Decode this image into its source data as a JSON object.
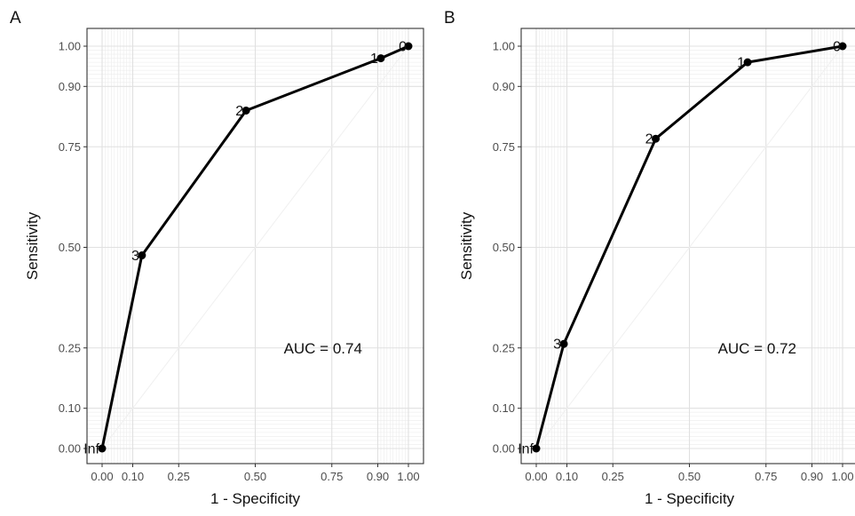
{
  "chart_data": [
    {
      "type": "line",
      "panel_label": "A",
      "xlabel": "1 - Specificity",
      "ylabel": "Sensitivity",
      "xlim": [
        0,
        1
      ],
      "ylim": [
        0,
        1
      ],
      "grid": true,
      "x_ticks": [
        0,
        0.1,
        0.25,
        0.5,
        0.75,
        0.9,
        1
      ],
      "x_tick_labels": [
        "0.00",
        "0.10",
        "0.25",
        "0.50",
        "0.75",
        "0.90",
        "1.00"
      ],
      "y_ticks": [
        0,
        0.1,
        0.25,
        0.5,
        0.75,
        0.9,
        1
      ],
      "y_tick_labels": [
        "0.00",
        "0.10",
        "0.25",
        "0.50",
        "0.75",
        "0.90",
        "1.00"
      ],
      "series": [
        {
          "points": [
            {
              "x": 0.0,
              "y": 0.0,
              "label": "Inf"
            },
            {
              "x": 0.13,
              "y": 0.48,
              "label": "3"
            },
            {
              "x": 0.47,
              "y": 0.84,
              "label": "2"
            },
            {
              "x": 0.91,
              "y": 0.97,
              "label": "1"
            },
            {
              "x": 1.0,
              "y": 1.0,
              "label": "0"
            }
          ]
        }
      ],
      "annotation": "AUC = 0.74"
    },
    {
      "type": "line",
      "panel_label": "B",
      "xlabel": "1 - Specificity",
      "ylabel": "Sensitivity",
      "xlim": [
        0,
        1
      ],
      "ylim": [
        0,
        1
      ],
      "grid": true,
      "x_ticks": [
        0,
        0.1,
        0.25,
        0.5,
        0.75,
        0.9,
        1
      ],
      "x_tick_labels": [
        "0.00",
        "0.10",
        "0.25",
        "0.50",
        "0.75",
        "0.90",
        "1.00"
      ],
      "y_ticks": [
        0,
        0.1,
        0.25,
        0.5,
        0.75,
        0.9,
        1
      ],
      "y_tick_labels": [
        "0.00",
        "0.10",
        "0.25",
        "0.50",
        "0.75",
        "0.90",
        "1.00"
      ],
      "series": [
        {
          "points": [
            {
              "x": 0.0,
              "y": 0.0,
              "label": "Inf"
            },
            {
              "x": 0.09,
              "y": 0.26,
              "label": "3"
            },
            {
              "x": 0.39,
              "y": 0.77,
              "label": "2"
            },
            {
              "x": 0.69,
              "y": 0.96,
              "label": "1"
            },
            {
              "x": 1.0,
              "y": 1.0,
              "label": "0"
            }
          ]
        }
      ],
      "annotation": "AUC = 0.72"
    }
  ]
}
